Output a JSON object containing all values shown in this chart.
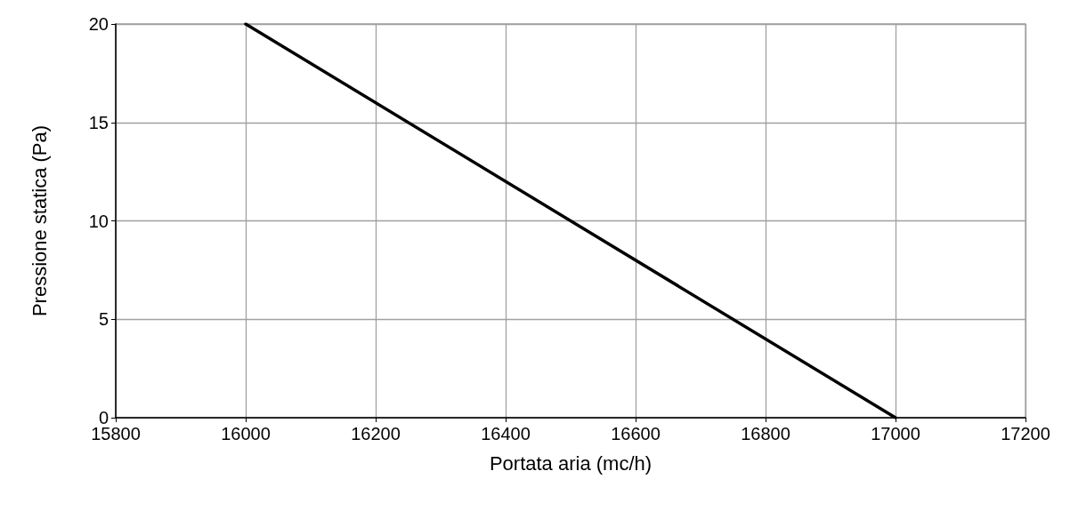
{
  "chart_data": {
    "type": "line",
    "xlabel": "Portata aria (mc/h)",
    "ylabel": "Pressione statica (Pa)",
    "x": [
      16000,
      17000
    ],
    "series": [
      {
        "color": "#000000",
        "values": [
          20,
          0
        ]
      }
    ],
    "xlim": [
      15800,
      17200
    ],
    "xticks": [
      15800,
      16000,
      16200,
      16400,
      16600,
      16800,
      17000,
      17200
    ],
    "ylim": [
      0,
      20
    ],
    "yticks": [
      0,
      5,
      10,
      15,
      20
    ],
    "grid": true,
    "marker": "none",
    "line_style": "solid"
  }
}
